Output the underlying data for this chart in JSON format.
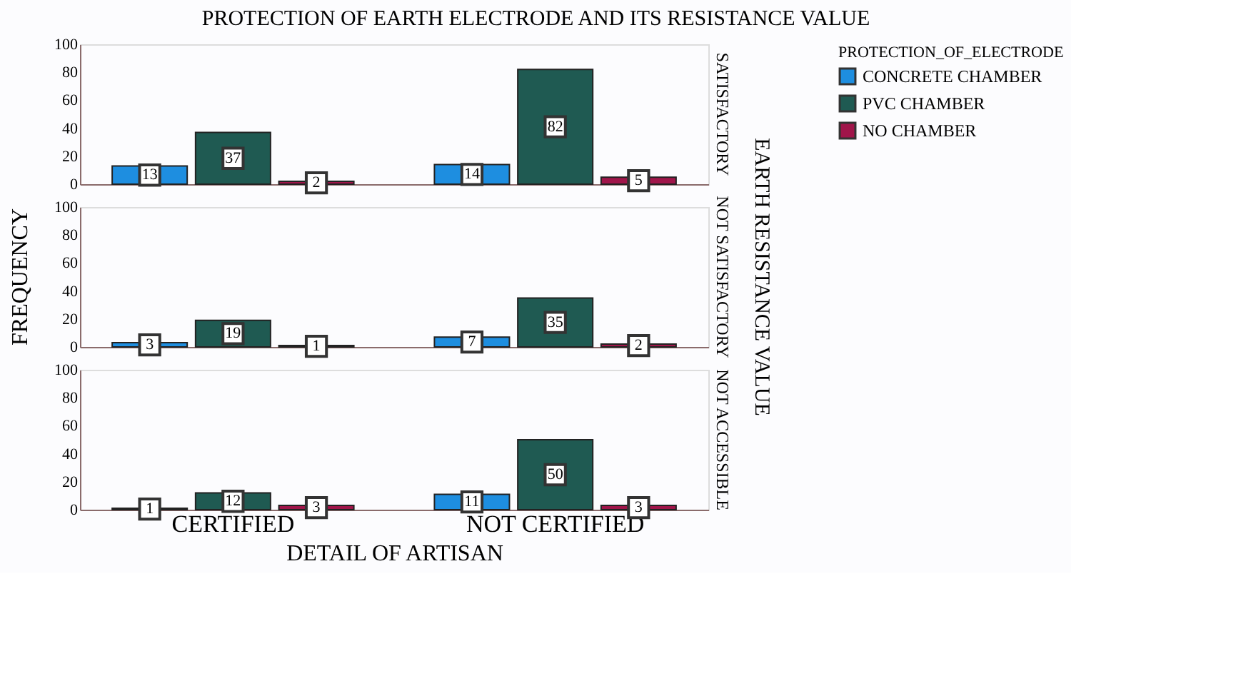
{
  "chart_data": [
    {
      "type": "bar",
      "title": "PROTECTION OF EARTH ELECTRODE AND ITS RESISTANCE VALUE",
      "subtitle": "SATISFACTORY",
      "legend_title": "PROTECTION_OF_ELECTRODE",
      "legend": "top right",
      "categories": [
        "CERTIFIED",
        "NOT CERTIFIED"
      ],
      "ylim": [
        0,
        100
      ],
      "yticks": [
        0,
        20,
        40,
        60,
        80,
        100
      ],
      "tick_labels": "y",
      "data_labels": true,
      "series": [
        {
          "name": "CONCRETE CHAMBER",
          "color": "#1e8ee0",
          "values": [
            13,
            14
          ]
        },
        {
          "name": "PVC CHAMBER",
          "color": "#1f5a52",
          "values": [
            37,
            82
          ]
        },
        {
          "name": "NO CHAMBER",
          "color": "#a0154a",
          "values": [
            2,
            5
          ]
        }
      ]
    },
    {
      "type": "bar",
      "subtitle": "NOT SATISFACTORY",
      "ylabel": "FREQUENCY",
      "y2label": "EARTH RESISTANCE VALUE",
      "categories": [
        "CERTIFIED",
        "NOT CERTIFIED"
      ],
      "ylim": [
        0,
        100
      ],
      "yticks": [
        0,
        20,
        40,
        60,
        80,
        100
      ],
      "tick_labels": "y",
      "data_labels": true,
      "series": [
        {
          "name": "CONCRETE CHAMBER",
          "color": "#1e8ee0",
          "values": [
            3,
            7
          ]
        },
        {
          "name": "PVC CHAMBER",
          "color": "#1f5a52",
          "values": [
            19,
            35
          ]
        },
        {
          "name": "NO CHAMBER",
          "color": "#a0154a",
          "values": [
            1,
            2
          ]
        }
      ]
    },
    {
      "type": "bar",
      "subtitle": "NOT ACCESSIBLE",
      "xlabel": "DETAIL OF ARTISAN",
      "categories": [
        "CERTIFIED",
        "NOT CERTIFIED"
      ],
      "ylim": [
        0,
        100
      ],
      "yticks": [
        0,
        20,
        40,
        60,
        80,
        100
      ],
      "data_labels": true,
      "series": [
        {
          "name": "CONCRETE CHAMBER",
          "color": "#1e8ee0",
          "values": [
            1,
            11
          ]
        },
        {
          "name": "PVC CHAMBER",
          "color": "#1f5a52",
          "values": [
            12,
            50
          ]
        },
        {
          "name": "NO CHAMBER",
          "color": "#a0154a",
          "values": [
            3,
            3
          ]
        }
      ]
    }
  ]
}
